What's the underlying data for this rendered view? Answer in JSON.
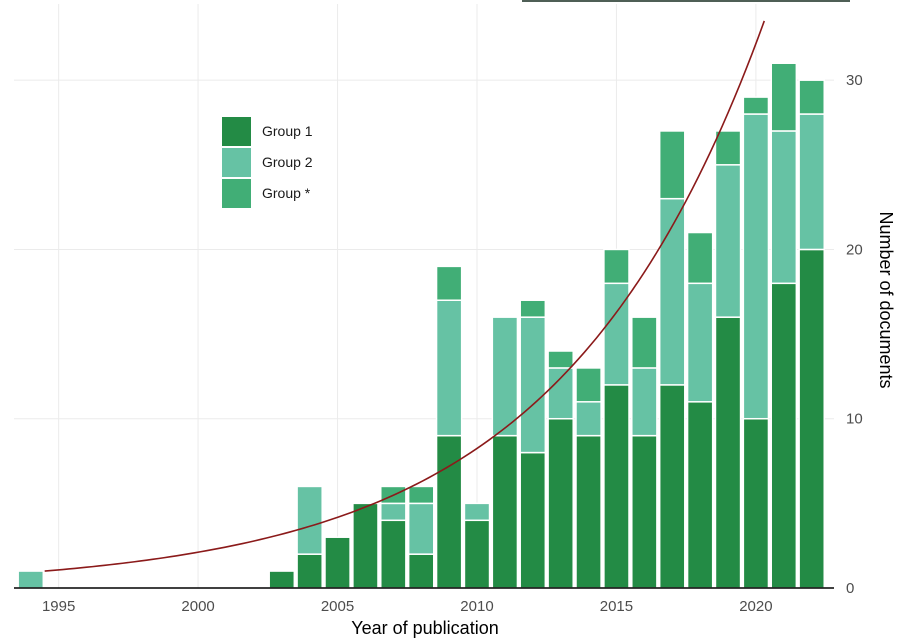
{
  "chart_data": {
    "type": "bar",
    "stacked": true,
    "x": [
      1994,
      2003,
      2004,
      2005,
      2006,
      2007,
      2008,
      2009,
      2010,
      2011,
      2012,
      2013,
      2014,
      2015,
      2016,
      2017,
      2018,
      2019,
      2020,
      2021,
      2022
    ],
    "series": [
      {
        "name": "Group 1",
        "color": "#238b45",
        "values": [
          0,
          1,
          2,
          3,
          5,
          4,
          2,
          9,
          4,
          9,
          8,
          10,
          9,
          12,
          9,
          12,
          11,
          16,
          10,
          18,
          20
        ]
      },
      {
        "name": "Group 2",
        "color": "#66c2a4",
        "values": [
          1,
          0,
          4,
          0,
          0,
          1,
          3,
          8,
          1,
          7,
          8,
          3,
          2,
          6,
          4,
          11,
          7,
          9,
          18,
          9,
          8
        ]
      },
      {
        "name": "Group *",
        "color": "#41ae76",
        "values": [
          0,
          0,
          0,
          0,
          0,
          1,
          1,
          2,
          0,
          0,
          1,
          1,
          2,
          2,
          3,
          4,
          3,
          2,
          1,
          4,
          2
        ]
      }
    ],
    "trend": {
      "type": "exponential",
      "color": "#8b1a1a",
      "x_start": 1994.5,
      "x_end": 2020.3,
      "y_start": 1.0,
      "y_end": 33.5
    },
    "xlabel": "Year of publication",
    "ylabel": "Number of documents",
    "x_ticks": [
      "1995",
      "2000",
      "2005",
      "2010",
      "2015",
      "2020"
    ],
    "y_ticks": [
      "0",
      "10",
      "20",
      "30"
    ],
    "xlim": [
      1993.4,
      2022.8
    ],
    "ylim": [
      0,
      34.5
    ],
    "y_axis_side": "right",
    "legend_position": "top-left inside",
    "grid": true
  }
}
